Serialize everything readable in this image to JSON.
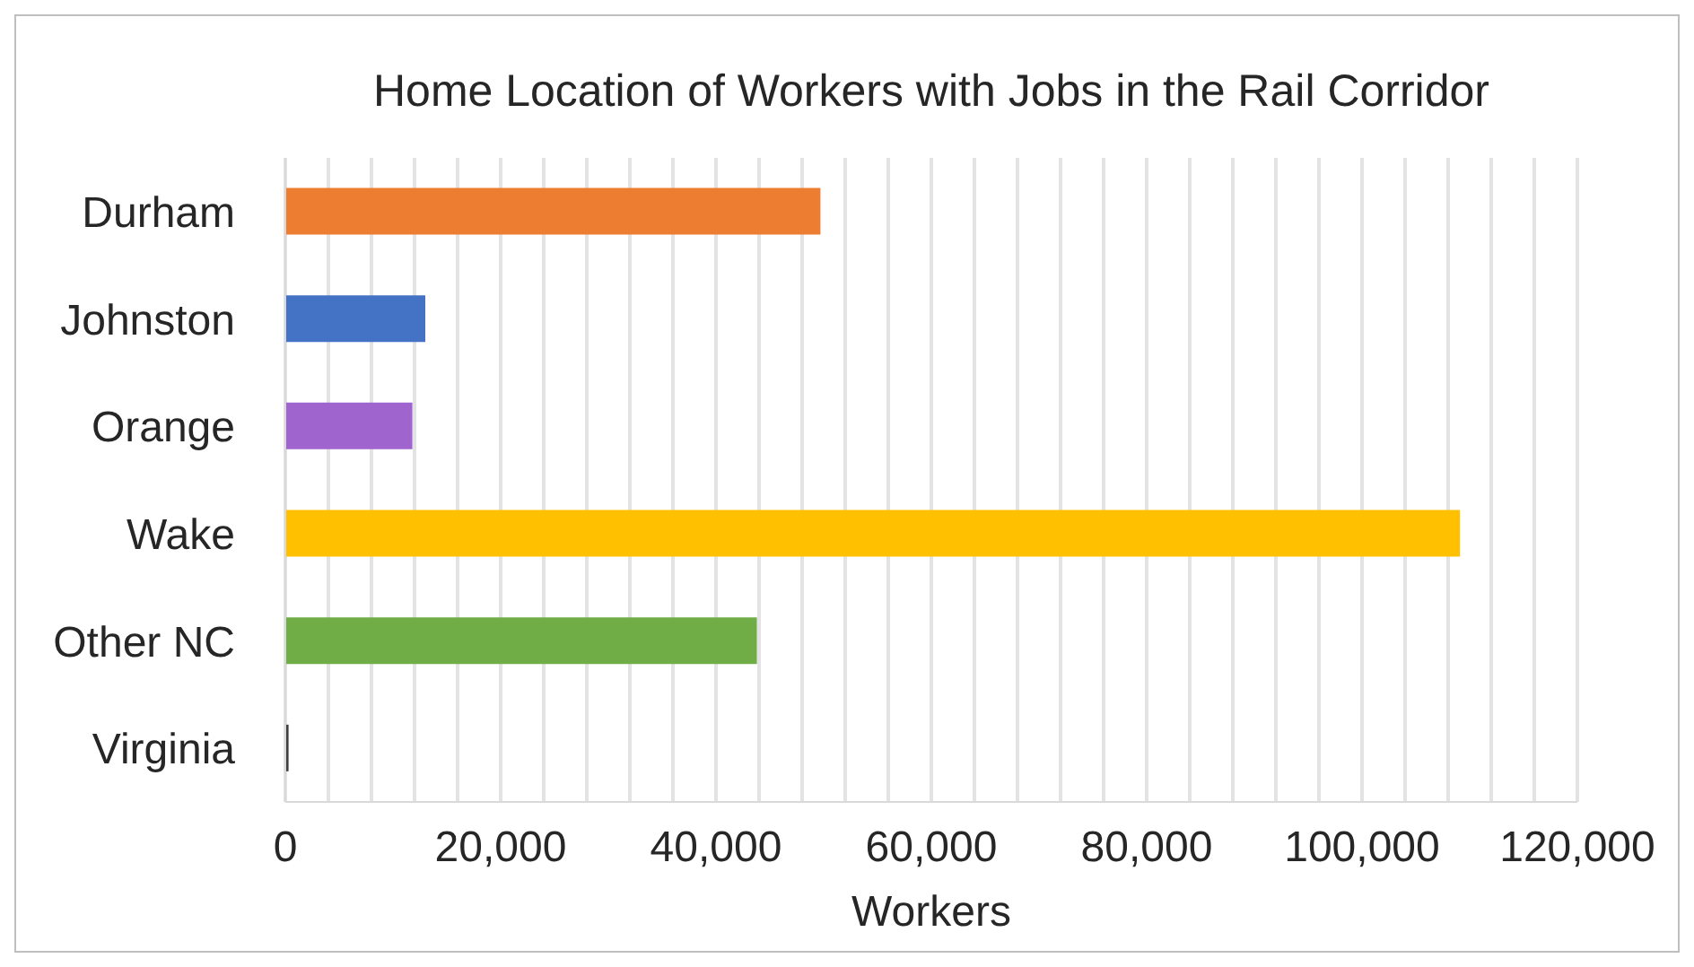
{
  "chart_data": {
    "type": "bar",
    "orientation": "horizontal",
    "title": "Home Location of Workers with Jobs in the Rail Corridor",
    "xlabel": "Workers",
    "categories": [
      "Durham",
      "Johnston",
      "Orange",
      "Wake",
      "Other NC",
      "Virginia"
    ],
    "values": [
      49700,
      13000,
      11800,
      109100,
      43800,
      300
    ],
    "colors": [
      "#ed7d31",
      "#4472c4",
      "#a064cf",
      "#ffc000",
      "#70ad47",
      "#404040"
    ],
    "xlim": [
      0,
      120000
    ],
    "xticks": [
      0,
      {
        "value": 4000,
        "label": null
      },
      {
        "value": 8000,
        "label": null
      },
      {
        "value": 12000,
        "label": null
      },
      {
        "value": 16000,
        "label": null
      },
      {
        "value": 20000,
        "label": "20,000"
      },
      {
        "value": 24000,
        "label": null
      },
      {
        "value": 28000,
        "label": null
      },
      {
        "value": 32000,
        "label": null
      },
      {
        "value": 36000,
        "label": null
      },
      {
        "value": 40000,
        "label": "40,000"
      },
      {
        "value": 44000,
        "label": null
      },
      {
        "value": 48000,
        "label": null
      },
      {
        "value": 52000,
        "label": null
      },
      {
        "value": 56000,
        "label": null
      },
      {
        "value": 60000,
        "label": "60,000"
      },
      {
        "value": 64000,
        "label": null
      },
      {
        "value": 68000,
        "label": null
      },
      {
        "value": 72000,
        "label": null
      },
      {
        "value": 76000,
        "label": null
      },
      {
        "value": 80000,
        "label": "80,000"
      },
      {
        "value": 84000,
        "label": null
      },
      {
        "value": 88000,
        "label": null
      },
      {
        "value": 92000,
        "label": null
      },
      {
        "value": 96000,
        "label": null
      },
      {
        "value": 100000,
        "label": "100,000"
      },
      {
        "value": 104000,
        "label": null
      },
      {
        "value": 108000,
        "label": null
      },
      {
        "value": 112000,
        "label": null
      },
      {
        "value": 116000,
        "label": null
      },
      {
        "value": 120000,
        "label": "120,000"
      }
    ],
    "grid": "x"
  }
}
